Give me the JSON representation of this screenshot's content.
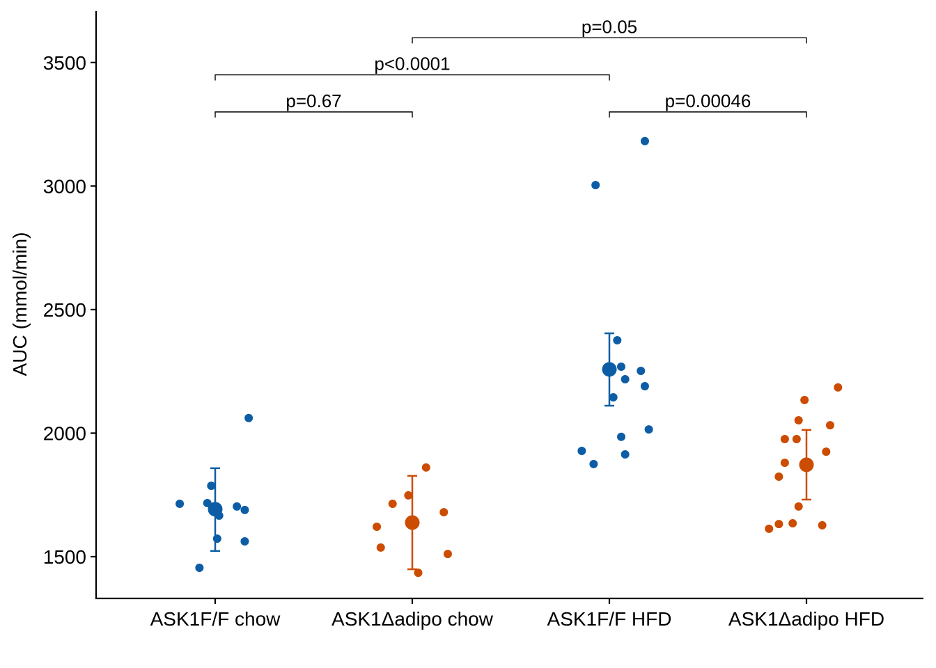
{
  "chart_data": {
    "type": "scatter",
    "title": "",
    "xlabel": "",
    "ylabel": "AUC (mmol/min)",
    "ylim": [
      1331,
      3708
    ],
    "yticks": [
      1500,
      2000,
      2500,
      3000,
      3500
    ],
    "ytick_labels": [
      "1500",
      "2000",
      "2500",
      "3000",
      "3500"
    ],
    "grid": false,
    "legend": "none",
    "categories": [
      "ASK1F/F chow",
      "ASK1Δadipo chow",
      "ASK1F/F HFD",
      "ASK1Δadipo HFD"
    ],
    "series": [
      {
        "name": "ASK1F/F chow",
        "color": "#0c5da5",
        "points": [
          1714,
          1787,
          1717,
          1666,
          1703,
          1689,
          1573,
          1562,
          1455,
          2061
        ],
        "jitter": [
          -0.18,
          -0.02,
          -0.04,
          0.02,
          0.11,
          0.15,
          0.01,
          0.15,
          -0.08,
          0.17
        ],
        "mean": 1692,
        "error_low": 1523,
        "error_high": 1858
      },
      {
        "name": "ASK1Δadipo chow",
        "color": "#cc4c02",
        "points": [
          1861,
          1748,
          1714,
          1680,
          1621,
          1537,
          1511,
          1435
        ],
        "jitter": [
          0.07,
          -0.02,
          -0.1,
          0.16,
          -0.18,
          -0.16,
          0.18,
          0.03
        ],
        "mean": 1638,
        "error_low": 1449,
        "error_high": 1827
      },
      {
        "name": "ASK1F/F HFD",
        "color": "#0c5da5",
        "points": [
          3182,
          3004,
          2376,
          2269,
          2252,
          2218,
          2190,
          2145,
          2015,
          1985,
          1928,
          1914,
          1875
        ],
        "jitter": [
          0.18,
          -0.07,
          0.04,
          0.06,
          0.16,
          0.08,
          0.18,
          0.02,
          0.2,
          0.06,
          -0.14,
          0.08,
          -0.08
        ],
        "mean": 2258,
        "error_low": 2111,
        "error_high": 2404
      },
      {
        "name": "ASK1Δadipo HFD",
        "color": "#cc4c02",
        "points": [
          2185,
          2134,
          2052,
          2032,
          1976,
          1976,
          1925,
          1880,
          1824,
          1703,
          1627,
          1635,
          1632,
          1613
        ],
        "jitter": [
          0.16,
          -0.01,
          -0.04,
          0.12,
          -0.05,
          -0.11,
          0.1,
          -0.11,
          -0.14,
          -0.04,
          0.08,
          -0.07,
          -0.14,
          -0.19
        ],
        "mean": 1872,
        "error_low": 1731,
        "error_high": 2013
      }
    ],
    "comparisons": [
      {
        "from": 0,
        "to": 1,
        "label": "p=0.67",
        "level": 3300
      },
      {
        "from": 0,
        "to": 2,
        "label": "p<0.0001",
        "level": 3450
      },
      {
        "from": 1,
        "to": 3,
        "label": "p=0.05",
        "level": 3600
      },
      {
        "from": 2,
        "to": 3,
        "label": "p=0.00046",
        "level": 3300
      }
    ]
  }
}
